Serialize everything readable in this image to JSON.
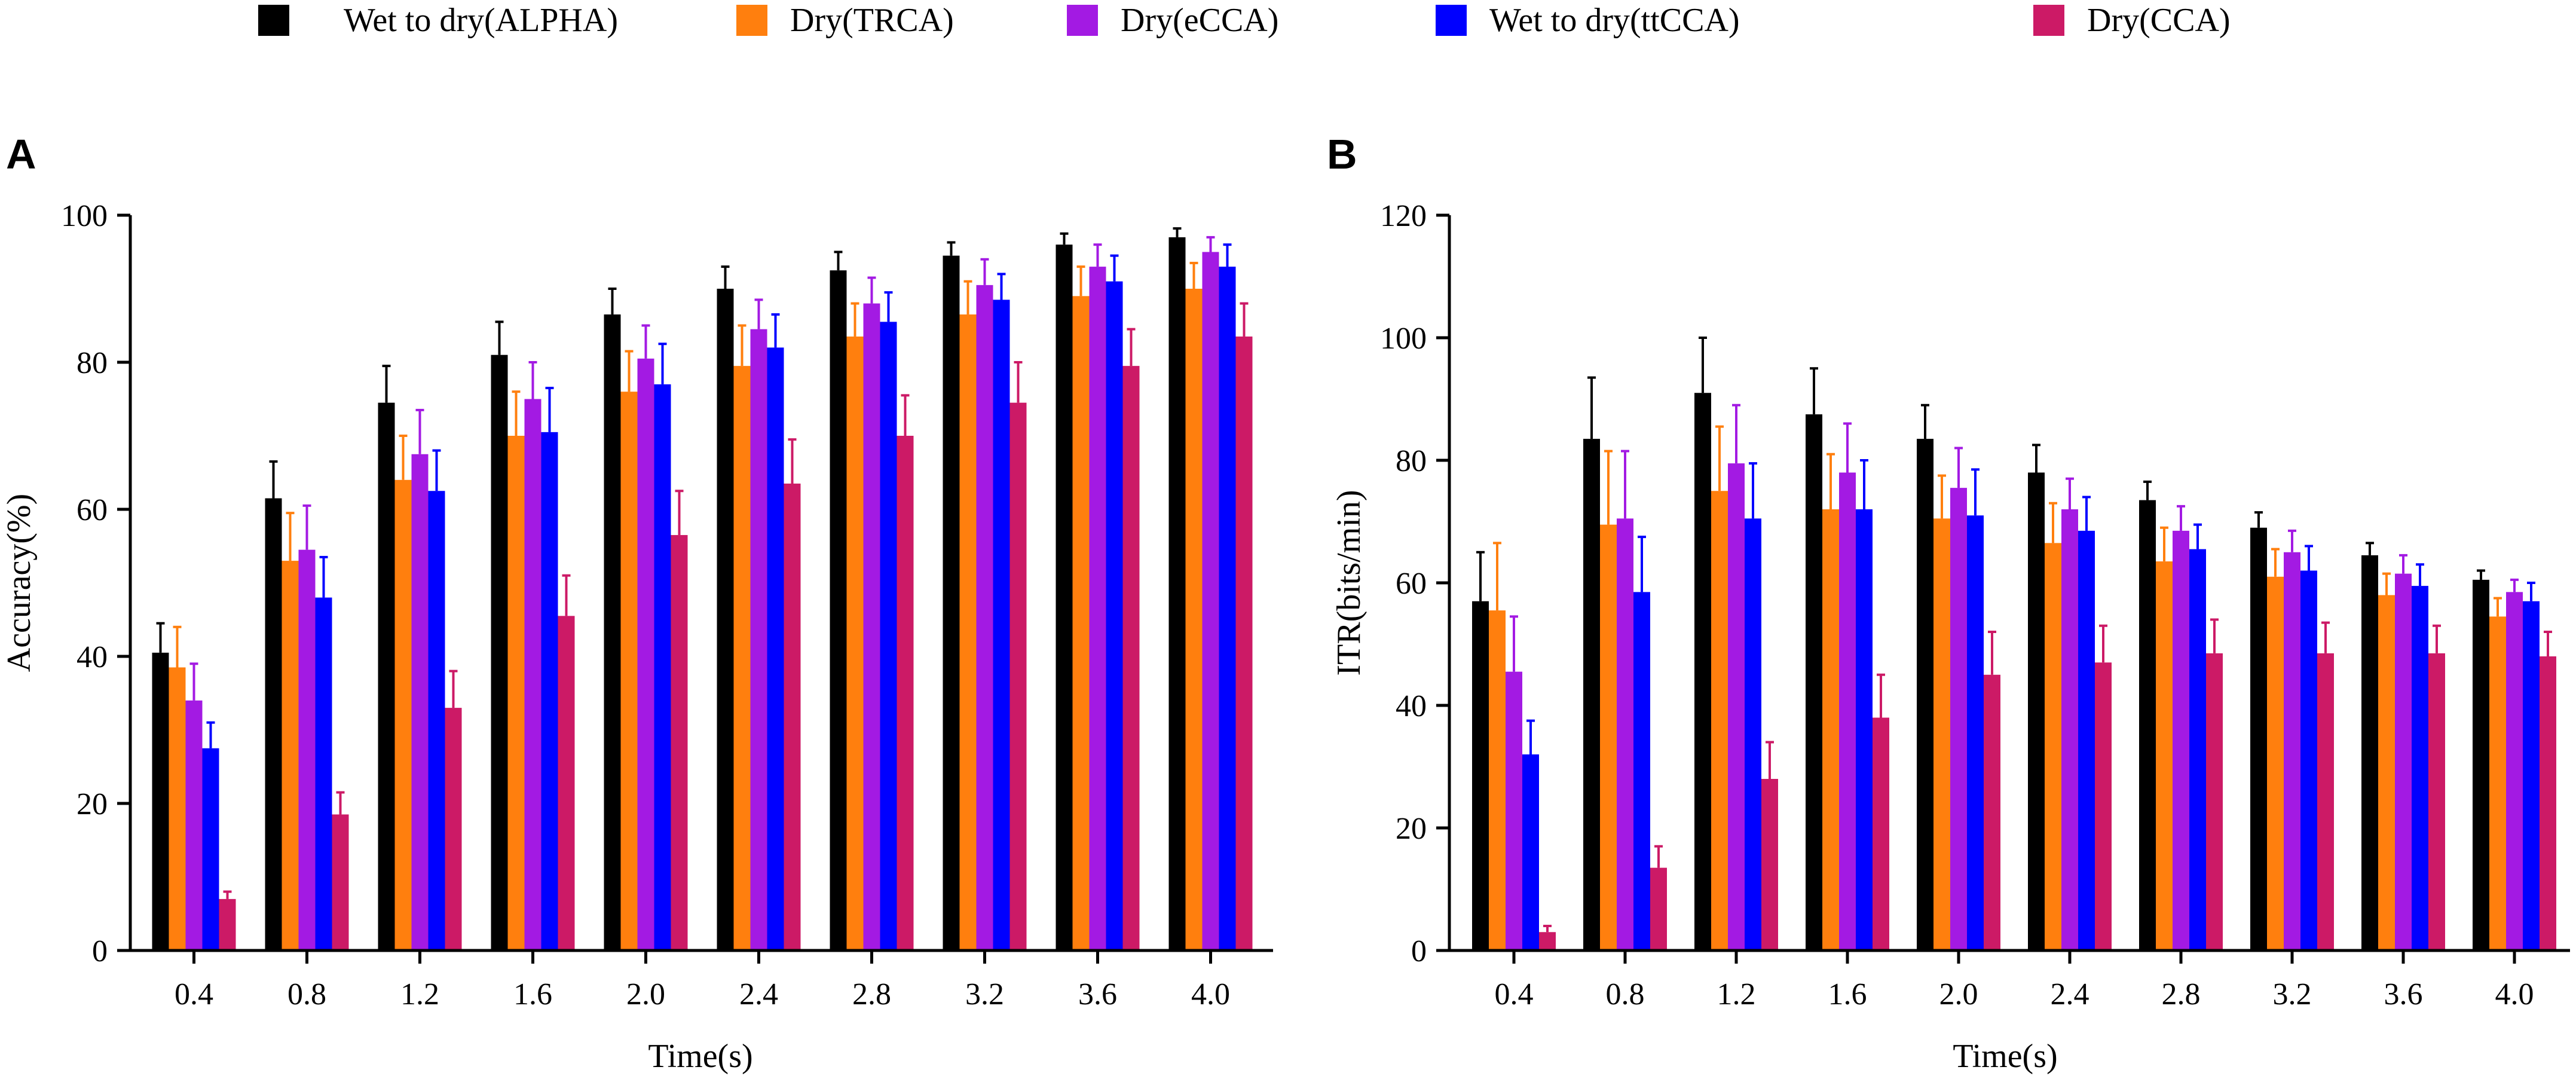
{
  "legend": [
    {
      "name": "Wet to dry(ALPHA)",
      "color": "#000000"
    },
    {
      "name": "Dry(TRCA)",
      "color": "#ff7f0e"
    },
    {
      "name": "Dry(eCCA)",
      "color": "#a31ae3"
    },
    {
      "name": "Wet to dry(ttCCA)",
      "color": "#0000ff"
    },
    {
      "name": "Dry(CCA)",
      "color": "#cc1a66"
    }
  ],
  "chart_data": [
    {
      "panel": "A",
      "type": "bar",
      "xlabel": "Time(s)",
      "ylabel": "Accuracy(%)",
      "ylim": [
        0,
        100
      ],
      "yticks": [
        "0",
        "20",
        "40",
        "60",
        "80",
        "100"
      ],
      "categories": [
        "0.4",
        "0.8",
        "1.2",
        "1.6",
        "2.0",
        "2.4",
        "2.8",
        "3.2",
        "3.6",
        "4.0"
      ],
      "series": [
        {
          "name": "Wet to dry(ALPHA)",
          "values": [
            40.5,
            61.5,
            74.5,
            81.0,
            86.5,
            90.0,
            92.5,
            94.5,
            96.0,
            97.0
          ],
          "errors": [
            4.0,
            5.0,
            5.0,
            4.5,
            3.5,
            3.0,
            2.5,
            1.8,
            1.5,
            1.2
          ]
        },
        {
          "name": "Dry(TRCA)",
          "values": [
            38.5,
            53.0,
            64.0,
            70.0,
            76.0,
            79.5,
            83.5,
            86.5,
            89.0,
            90.0
          ],
          "errors": [
            5.5,
            6.5,
            6.0,
            6.0,
            5.5,
            5.5,
            4.5,
            4.5,
            4.0,
            3.5
          ]
        },
        {
          "name": "Dry(eCCA)",
          "values": [
            34.0,
            54.5,
            67.5,
            75.0,
            80.5,
            84.5,
            88.0,
            90.5,
            93.0,
            95.0
          ],
          "errors": [
            5.0,
            6.0,
            6.0,
            5.0,
            4.5,
            4.0,
            3.5,
            3.5,
            3.0,
            2.0
          ]
        },
        {
          "name": "Wet to dry(ttCCA)",
          "values": [
            27.5,
            48.0,
            62.5,
            70.5,
            77.0,
            82.0,
            85.5,
            88.5,
            91.0,
            93.0
          ],
          "errors": [
            3.5,
            5.5,
            5.5,
            6.0,
            5.5,
            4.5,
            4.0,
            3.5,
            3.5,
            3.0
          ]
        },
        {
          "name": "Dry(CCA)",
          "values": [
            7.0,
            18.5,
            33.0,
            45.5,
            56.5,
            63.5,
            70.0,
            74.5,
            79.5,
            83.5
          ],
          "errors": [
            1.0,
            3.0,
            5.0,
            5.5,
            6.0,
            6.0,
            5.5,
            5.5,
            5.0,
            4.5
          ]
        }
      ]
    },
    {
      "panel": "B",
      "type": "bar",
      "xlabel": "Time(s)",
      "ylabel": "ITR(bits/min)",
      "ylim": [
        0,
        120
      ],
      "yticks": [
        "0",
        "20",
        "40",
        "60",
        "80",
        "100",
        "120"
      ],
      "categories": [
        "0.4",
        "0.8",
        "1.2",
        "1.6",
        "2.0",
        "2.4",
        "2.8",
        "3.2",
        "3.6",
        "4.0"
      ],
      "series": [
        {
          "name": "Wet to dry(ALPHA)",
          "values": [
            57.0,
            83.5,
            91.0,
            87.5,
            83.5,
            78.0,
            73.5,
            69.0,
            64.5,
            60.5
          ],
          "errors": [
            8.0,
            10.0,
            9.0,
            7.5,
            5.5,
            4.5,
            3.0,
            2.5,
            2.0,
            1.5
          ]
        },
        {
          "name": "Dry(TRCA)",
          "values": [
            55.5,
            69.5,
            75.0,
            72.0,
            70.5,
            66.5,
            63.5,
            61.0,
            58.0,
            54.5
          ],
          "errors": [
            11.0,
            12.0,
            10.5,
            9.0,
            7.0,
            6.5,
            5.5,
            4.5,
            3.5,
            3.0
          ]
        },
        {
          "name": "Dry(eCCA)",
          "values": [
            45.5,
            70.5,
            79.5,
            78.0,
            75.5,
            72.0,
            68.5,
            65.0,
            61.5,
            58.5
          ],
          "errors": [
            9.0,
            11.0,
            9.5,
            8.0,
            6.5,
            5.0,
            4.0,
            3.5,
            3.0,
            2.0
          ]
        },
        {
          "name": "Wet to dry(ttCCA)",
          "values": [
            32.0,
            58.5,
            70.5,
            72.0,
            71.0,
            68.5,
            65.5,
            62.0,
            59.5,
            57.0
          ],
          "errors": [
            5.5,
            9.0,
            9.0,
            8.0,
            7.5,
            5.5,
            4.0,
            4.0,
            3.5,
            3.0
          ]
        },
        {
          "name": "Dry(CCA)",
          "values": [
            3.0,
            13.5,
            28.0,
            38.0,
            45.0,
            47.0,
            48.5,
            48.5,
            48.5,
            48.0
          ],
          "errors": [
            1.0,
            3.5,
            6.0,
            7.0,
            7.0,
            6.0,
            5.5,
            5.0,
            4.5,
            4.0
          ]
        }
      ]
    }
  ]
}
